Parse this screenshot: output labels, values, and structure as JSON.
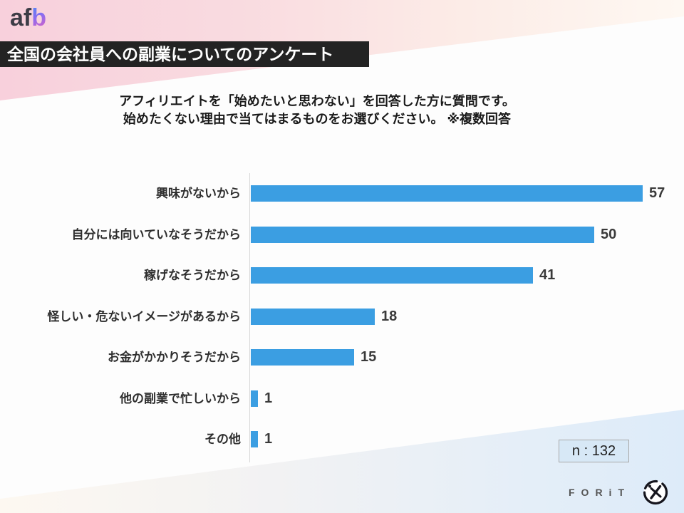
{
  "brand": {
    "af": "af",
    "b": "b"
  },
  "header": {
    "title": "全国の会社員への副業についてのアンケート"
  },
  "subtitle": {
    "line1": "アフィリエイトを「始めたいと思わない」を回答した方に質問です。",
    "line2": "始めたくない理由で当てはまるものをお選びください。 ※複数回答"
  },
  "chart_data": {
    "type": "bar",
    "orientation": "horizontal",
    "title": "",
    "categories": [
      "興味がないから",
      "自分には向いていなそうだから",
      "稼げなそうだから",
      "怪しい・危ないイメージがあるから",
      "お金がかかりそうだから",
      "他の副業で忙しいから",
      "その他"
    ],
    "values": [
      57,
      50,
      41,
      18,
      15,
      1,
      1
    ],
    "xlim": [
      0,
      59
    ],
    "bar_color": "#3b9ee2",
    "grid": false,
    "legend": false
  },
  "sample": {
    "label": "n : 132"
  },
  "footer": {
    "logo_text": "FORiT"
  },
  "colors": {
    "bar": "#3b9ee2",
    "title_bar_bg": "#232323",
    "top_band_pink": "#f8d0dc",
    "bottom_band_blue": "#ddebf9",
    "sample_box_bg": "#d7e8f6"
  }
}
